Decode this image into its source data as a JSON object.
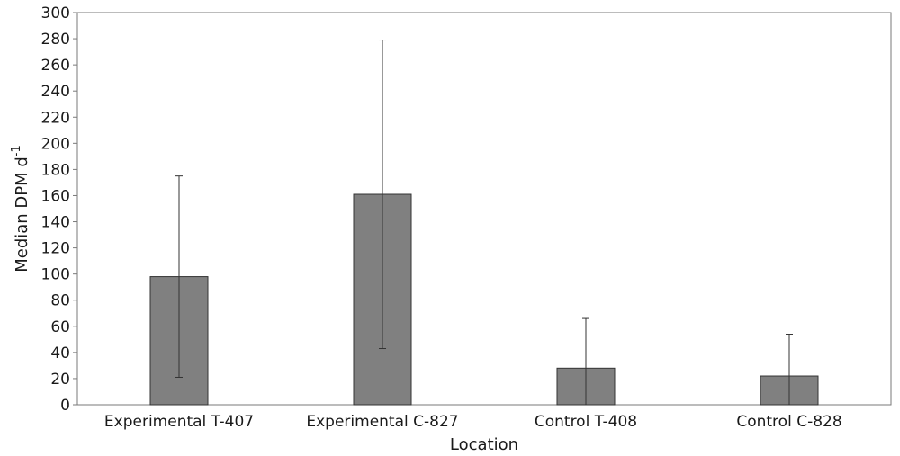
{
  "chart_data": {
    "type": "bar",
    "title": "",
    "xlabel": "Location",
    "ylabel_main": "Median DPM d",
    "ylabel_superscript": "-1",
    "ylim": [
      0,
      300
    ],
    "yticks": [
      0,
      20,
      40,
      60,
      80,
      100,
      120,
      140,
      160,
      180,
      200,
      220,
      240,
      260,
      280,
      300
    ],
    "categories": [
      "Experimental T-407",
      "Experimental C-827",
      "Control T-408",
      "Control C-828"
    ],
    "values": [
      98,
      161,
      28,
      22
    ],
    "error_low": [
      21,
      43,
      0,
      0
    ],
    "error_high": [
      175,
      279,
      66,
      54
    ],
    "grid": false,
    "legend": "none",
    "bar_color": "#808080",
    "bar_edge_color": "#333333"
  }
}
